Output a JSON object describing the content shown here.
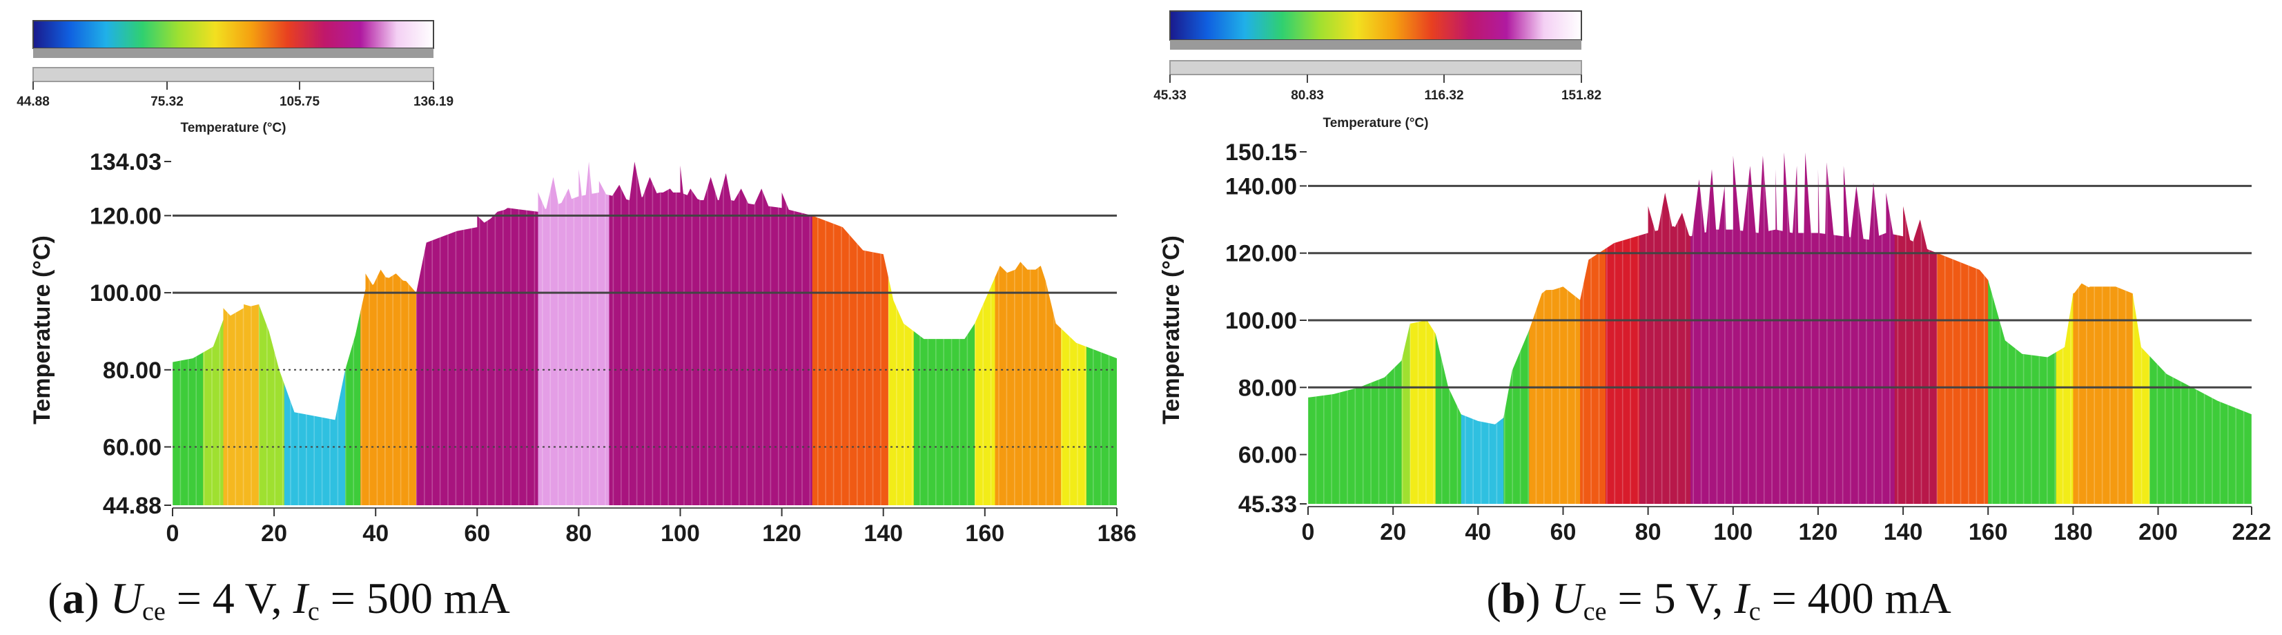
{
  "chart_data": [
    {
      "id": "a",
      "type": "area",
      "colorbar": {
        "ticks": [
          "44.88",
          "75.32",
          "105.75",
          "136.19"
        ],
        "min": 44.88,
        "max": 136.19,
        "title": "Temperature (°C)"
      },
      "ylabel": "Temperature (°C)",
      "ylim": [
        44.88,
        134.03
      ],
      "yticks": [
        "44.88",
        "60.00",
        "80.00",
        "100.00",
        "120.00",
        "134.03"
      ],
      "xlim": [
        0,
        186
      ],
      "xticks": [
        "0",
        "20",
        "40",
        "60",
        "80",
        "100",
        "120",
        "140",
        "160",
        "186"
      ],
      "gridlines_solid": [
        100,
        120
      ],
      "gridlines_dotted": [
        60,
        80
      ],
      "caption": {
        "letter": "a",
        "var1": "U",
        "sub1": "ce",
        "text1": " = 4 V, ",
        "var2": "I",
        "sub2": "c",
        "text2": " = 500 mA"
      },
      "profile": [
        [
          0,
          82
        ],
        [
          4,
          83
        ],
        [
          8,
          86
        ],
        [
          10,
          93
        ],
        [
          14,
          96
        ],
        [
          17,
          97
        ],
        [
          19,
          90
        ],
        [
          21,
          80
        ],
        [
          24,
          69
        ],
        [
          28,
          68
        ],
        [
          32,
          67
        ],
        [
          34,
          80
        ],
        [
          36,
          89
        ],
        [
          38,
          101
        ],
        [
          42,
          104
        ],
        [
          46,
          103
        ],
        [
          48,
          100
        ],
        [
          50,
          113
        ],
        [
          56,
          116
        ],
        [
          60,
          117
        ],
        [
          66,
          122
        ],
        [
          72,
          121
        ],
        [
          76,
          123
        ],
        [
          80,
          125
        ],
        [
          84,
          126
        ],
        [
          90,
          124
        ],
        [
          96,
          126
        ],
        [
          100,
          126
        ],
        [
          104,
          124
        ],
        [
          110,
          124
        ],
        [
          114,
          123
        ],
        [
          120,
          122
        ],
        [
          126,
          120
        ],
        [
          132,
          117
        ],
        [
          136,
          111
        ],
        [
          140,
          110
        ],
        [
          142,
          98
        ],
        [
          144,
          92
        ],
        [
          148,
          88
        ],
        [
          152,
          88
        ],
        [
          156,
          88
        ],
        [
          158,
          92
        ],
        [
          162,
          104
        ],
        [
          166,
          106
        ],
        [
          170,
          106
        ],
        [
          172,
          103
        ],
        [
          174,
          92
        ],
        [
          178,
          87
        ],
        [
          182,
          85
        ],
        [
          186,
          83
        ]
      ],
      "spikes": [
        [
          38,
          105
        ],
        [
          41,
          106
        ],
        [
          44,
          105
        ],
        [
          60,
          120
        ],
        [
          64,
          121
        ],
        [
          68,
          120
        ],
        [
          72,
          126
        ],
        [
          75,
          130
        ],
        [
          78,
          127
        ],
        [
          80,
          132
        ],
        [
          82,
          134
        ],
        [
          84,
          129
        ],
        [
          88,
          128
        ],
        [
          91,
          134
        ],
        [
          94,
          130
        ],
        [
          98,
          127
        ],
        [
          100,
          133
        ],
        [
          102,
          127
        ],
        [
          106,
          130
        ],
        [
          109,
          131
        ],
        [
          112,
          127
        ],
        [
          116,
          127
        ],
        [
          120,
          126
        ],
        [
          136,
          111
        ],
        [
          163,
          107
        ],
        [
          167,
          108
        ],
        [
          171,
          107
        ],
        [
          10,
          96
        ],
        [
          14,
          97
        ]
      ],
      "stripes": [
        {
          "x0": 0,
          "x1": 6,
          "band": "green"
        },
        {
          "x0": 6,
          "x1": 10,
          "band": "yellowgreen"
        },
        {
          "x0": 10,
          "x1": 17,
          "band": "yelloworange"
        },
        {
          "x0": 17,
          "x1": 22,
          "band": "yellowgreen"
        },
        {
          "x0": 22,
          "x1": 34,
          "band": "cyan"
        },
        {
          "x0": 34,
          "x1": 37,
          "band": "green"
        },
        {
          "x0": 37,
          "x1": 48,
          "band": "orange"
        },
        {
          "x0": 48,
          "x1": 72,
          "band": "magenta"
        },
        {
          "x0": 72,
          "x1": 86,
          "band": "pink"
        },
        {
          "x0": 86,
          "x1": 126,
          "band": "magenta"
        },
        {
          "x0": 126,
          "x1": 141,
          "band": "redorange"
        },
        {
          "x0": 141,
          "x1": 146,
          "band": "yellow"
        },
        {
          "x0": 146,
          "x1": 158,
          "band": "green"
        },
        {
          "x0": 158,
          "x1": 162,
          "band": "yellow"
        },
        {
          "x0": 162,
          "x1": 175,
          "band": "orange"
        },
        {
          "x0": 175,
          "x1": 180,
          "band": "yellow"
        },
        {
          "x0": 180,
          "x1": 186,
          "band": "green"
        }
      ]
    },
    {
      "id": "b",
      "type": "area",
      "colorbar": {
        "ticks": [
          "45.33",
          "80.83",
          "116.32",
          "151.82"
        ],
        "min": 45.33,
        "max": 151.82,
        "title": "Temperature (°C)"
      },
      "ylabel": "Temperature (°C)",
      "ylim": [
        45.33,
        150.15
      ],
      "yticks": [
        "45.33",
        "60.00",
        "80.00",
        "100.00",
        "120.00",
        "140.00",
        "150.15"
      ],
      "xlim": [
        0,
        222
      ],
      "xticks": [
        "0",
        "20",
        "40",
        "60",
        "80",
        "100",
        "120",
        "140",
        "160",
        "180",
        "200",
        "222"
      ],
      "gridlines_solid": [
        80,
        100,
        120,
        140
      ],
      "gridlines_dotted": [],
      "caption": {
        "letter": "b",
        "var1": "U",
        "sub1": "ce",
        "text1": " = 5 V, ",
        "var2": "I",
        "sub2": "c",
        "text2": " = 400 mA"
      },
      "profile": [
        [
          0,
          77
        ],
        [
          6,
          78
        ],
        [
          12,
          80
        ],
        [
          18,
          83
        ],
        [
          22,
          88
        ],
        [
          24,
          99
        ],
        [
          28,
          100
        ],
        [
          30,
          96
        ],
        [
          33,
          80
        ],
        [
          36,
          72
        ],
        [
          40,
          70
        ],
        [
          44,
          69
        ],
        [
          46,
          71
        ],
        [
          48,
          85
        ],
        [
          52,
          97
        ],
        [
          55,
          108
        ],
        [
          60,
          110
        ],
        [
          64,
          106
        ],
        [
          66,
          118
        ],
        [
          72,
          123
        ],
        [
          80,
          126
        ],
        [
          86,
          128
        ],
        [
          90,
          125
        ],
        [
          96,
          127
        ],
        [
          100,
          127
        ],
        [
          106,
          126
        ],
        [
          110,
          127
        ],
        [
          114,
          126
        ],
        [
          120,
          126
        ],
        [
          126,
          125
        ],
        [
          132,
          124
        ],
        [
          136,
          126
        ],
        [
          140,
          125
        ],
        [
          146,
          121
        ],
        [
          152,
          118
        ],
        [
          158,
          115
        ],
        [
          160,
          112
        ],
        [
          164,
          94
        ],
        [
          168,
          90
        ],
        [
          174,
          89
        ],
        [
          178,
          92
        ],
        [
          180,
          108
        ],
        [
          184,
          110
        ],
        [
          190,
          110
        ],
        [
          194,
          108
        ],
        [
          196,
          92
        ],
        [
          202,
          84
        ],
        [
          208,
          80
        ],
        [
          214,
          76
        ],
        [
          222,
          72
        ]
      ],
      "spikes": [
        [
          56,
          109
        ],
        [
          60,
          110
        ],
        [
          80,
          134
        ],
        [
          84,
          138
        ],
        [
          88,
          132
        ],
        [
          92,
          142
        ],
        [
          95,
          145
        ],
        [
          98,
          140
        ],
        [
          100,
          149
        ],
        [
          104,
          146
        ],
        [
          107,
          149
        ],
        [
          110,
          145
        ],
        [
          112,
          150
        ],
        [
          115,
          146
        ],
        [
          117,
          150
        ],
        [
          120,
          145
        ],
        [
          122,
          147
        ],
        [
          126,
          146
        ],
        [
          129,
          140
        ],
        [
          133,
          141
        ],
        [
          136,
          138
        ],
        [
          140,
          134
        ],
        [
          144,
          130
        ],
        [
          182,
          111
        ],
        [
          188,
          110
        ]
      ],
      "stripes": [
        {
          "x0": 0,
          "x1": 22,
          "band": "green"
        },
        {
          "x0": 22,
          "x1": 24,
          "band": "yellowgreen"
        },
        {
          "x0": 24,
          "x1": 30,
          "band": "yellow"
        },
        {
          "x0": 30,
          "x1": 36,
          "band": "green"
        },
        {
          "x0": 36,
          "x1": 46,
          "band": "cyan"
        },
        {
          "x0": 46,
          "x1": 52,
          "band": "green"
        },
        {
          "x0": 52,
          "x1": 64,
          "band": "orange"
        },
        {
          "x0": 64,
          "x1": 70,
          "band": "redorange"
        },
        {
          "x0": 70,
          "x1": 78,
          "band": "red"
        },
        {
          "x0": 78,
          "x1": 90,
          "band": "crimson"
        },
        {
          "x0": 90,
          "x1": 138,
          "band": "magenta"
        },
        {
          "x0": 138,
          "x1": 148,
          "band": "crimson"
        },
        {
          "x0": 148,
          "x1": 160,
          "band": "redorange"
        },
        {
          "x0": 160,
          "x1": 176,
          "band": "green"
        },
        {
          "x0": 176,
          "x1": 180,
          "band": "yellow"
        },
        {
          "x0": 180,
          "x1": 194,
          "band": "orange"
        },
        {
          "x0": 194,
          "x1": 198,
          "band": "yellow"
        },
        {
          "x0": 198,
          "x1": 222,
          "band": "green"
        }
      ]
    }
  ],
  "palette": {
    "green": "#3ecc3a",
    "yellowgreen": "#9fe030",
    "yellow": "#f2ec18",
    "yelloworange": "#f5b820",
    "orange": "#f59a10",
    "redorange": "#f05a14",
    "red": "#d81c2c",
    "crimson": "#b8184a",
    "magenta": "#a8147e",
    "pink": "#e49ee6",
    "cyan": "#2fc0e0",
    "grid": "#444444",
    "axis": "#555555"
  },
  "colorbar_stops": [
    "#1a1a8c",
    "#1060e0",
    "#20b0e8",
    "#30d070",
    "#a0e030",
    "#f2e020",
    "#f5a010",
    "#e84020",
    "#c0186a",
    "#b01aa0",
    "#f4d0f4",
    "#ffffff"
  ]
}
